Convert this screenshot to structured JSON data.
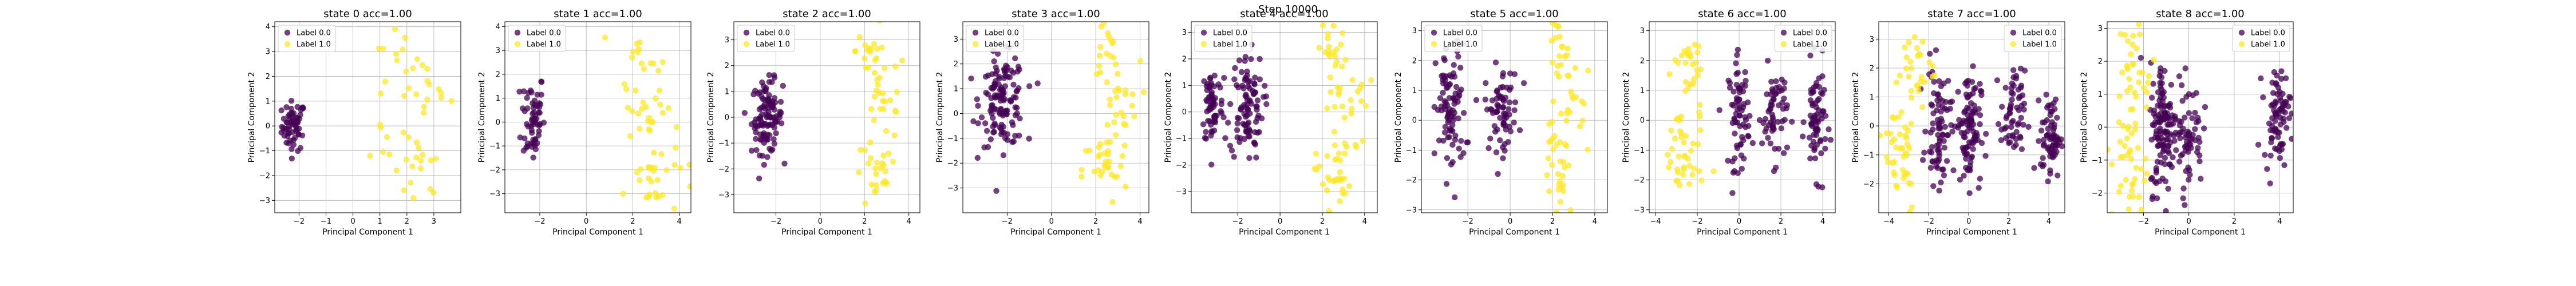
{
  "figure": {
    "suptitle": "Step 10000"
  },
  "colors": {
    "label0": "#440154",
    "label1": "#fde725",
    "grid": "#b0b0b0",
    "axis": "#000000"
  },
  "chart_data": [
    {
      "type": "scatter",
      "title": "state 0 acc=1.00",
      "xlabel": "Principal Component 1",
      "ylabel": "Principal Component 2",
      "xlim": [
        -2.9,
        4.0
      ],
      "ylim": [
        -3.5,
        4.2
      ],
      "xticks": [
        -2,
        -1,
        0,
        1,
        2,
        3
      ],
      "yticks": [
        -3,
        -2,
        -1,
        0,
        1,
        2,
        3,
        4
      ],
      "grid": true,
      "legend_loc": "upper-left",
      "series": [
        {
          "name": "Label 0.0",
          "clusters": [
            {
              "cx": -2.2,
              "cy": 0.0,
              "sx": 0.22,
              "sy": 0.5,
              "n": 60
            }
          ]
        },
        {
          "name": "Label 1.0",
          "clusters": [
            {
              "cx": 1.5,
              "cy": 2.4,
              "sx": 0.5,
              "sy": 0.9,
              "n": 15
            },
            {
              "cx": 2.8,
              "cy": 1.4,
              "sx": 0.4,
              "sy": 0.7,
              "n": 12
            },
            {
              "cx": 2.4,
              "cy": -2.0,
              "sx": 0.45,
              "sy": 0.8,
              "n": 18
            },
            {
              "cx": 1.2,
              "cy": -0.3,
              "sx": 0.3,
              "sy": 0.6,
              "n": 6
            }
          ]
        }
      ]
    },
    {
      "type": "scatter",
      "title": "state 1 acc=1.00",
      "xlabel": "Principal Component 1",
      "ylabel": "Principal Component 2",
      "xlim": [
        -3.5,
        4.5
      ],
      "ylim": [
        -3.8,
        4.2
      ],
      "xticks": [
        -2,
        0,
        2,
        4
      ],
      "yticks": [
        -3,
        -2,
        -1,
        0,
        1,
        2,
        3,
        4
      ],
      "grid": true,
      "legend_loc": "upper-left",
      "series": [
        {
          "name": "Label 0.0",
          "clusters": [
            {
              "cx": -2.3,
              "cy": 0.2,
              "sx": 0.25,
              "sy": 1.0,
              "n": 60
            }
          ]
        },
        {
          "name": "Label 1.0",
          "clusters": [
            {
              "cx": 2.2,
              "cy": 2.5,
              "sx": 0.4,
              "sy": 0.9,
              "n": 15
            },
            {
              "cx": 2.8,
              "cy": 0.2,
              "sx": 0.6,
              "sy": 1.0,
              "n": 25
            },
            {
              "cx": 2.8,
              "cy": -2.5,
              "sx": 0.6,
              "sy": 0.7,
              "n": 25
            }
          ]
        }
      ]
    },
    {
      "type": "scatter",
      "title": "state 2 acc=1.00",
      "xlabel": "Principal Component 1",
      "ylabel": "Principal Component 2",
      "xlim": [
        -3.9,
        4.5
      ],
      "ylim": [
        -3.7,
        3.7
      ],
      "xticks": [
        -2,
        0,
        2,
        4
      ],
      "yticks": [
        -3,
        -2,
        -1,
        0,
        1,
        2,
        3
      ],
      "grid": true,
      "legend_loc": "upper-left",
      "series": [
        {
          "name": "Label 0.0",
          "clusters": [
            {
              "cx": -2.4,
              "cy": 0.0,
              "sx": 0.35,
              "sy": 0.7,
              "n": 110
            }
          ]
        },
        {
          "name": "Label 1.0",
          "clusters": [
            {
              "cx": 2.2,
              "cy": 2.6,
              "sx": 0.3,
              "sy": 0.6,
              "n": 15
            },
            {
              "cx": 2.9,
              "cy": 0.8,
              "sx": 0.5,
              "sy": 0.9,
              "n": 25
            },
            {
              "cx": 2.5,
              "cy": -2.3,
              "sx": 0.5,
              "sy": 0.7,
              "n": 25
            }
          ]
        }
      ]
    },
    {
      "type": "scatter",
      "title": "state 3 acc=1.00",
      "xlabel": "Principal Component 1",
      "ylabel": "Principal Component 2",
      "xlim": [
        -4.0,
        4.4
      ],
      "ylim": [
        -4.0,
        3.7
      ],
      "xticks": [
        -2,
        0,
        2,
        4
      ],
      "yticks": [
        -3,
        -2,
        -1,
        0,
        1,
        2,
        3
      ],
      "grid": true,
      "legend_loc": "upper-left",
      "series": [
        {
          "name": "Label 0.0",
          "clusters": [
            {
              "cx": -2.2,
              "cy": 0.5,
              "sx": 0.5,
              "sy": 0.9,
              "n": 130
            }
          ]
        },
        {
          "name": "Label 1.0",
          "clusters": [
            {
              "cx": 2.4,
              "cy": 2.6,
              "sx": 0.3,
              "sy": 0.6,
              "n": 15
            },
            {
              "cx": 3.0,
              "cy": 0.5,
              "sx": 0.5,
              "sy": 0.8,
              "n": 25
            },
            {
              "cx": 2.4,
              "cy": -2.3,
              "sx": 0.5,
              "sy": 0.7,
              "n": 30
            }
          ]
        }
      ]
    },
    {
      "type": "scatter",
      "title": "state 4 acc=1.00",
      "xlabel": "Principal Component 1",
      "ylabel": "Principal Component 2",
      "xlim": [
        -4.2,
        4.6
      ],
      "ylim": [
        -3.8,
        3.4
      ],
      "xticks": [
        -2,
        0,
        2,
        4
      ],
      "yticks": [
        -3,
        -2,
        -1,
        0,
        1,
        2,
        3
      ],
      "grid": true,
      "legend_loc": "upper-left",
      "series": [
        {
          "name": "Label 0.0",
          "clusters": [
            {
              "cx": -3.2,
              "cy": 0.3,
              "sx": 0.25,
              "sy": 0.8,
              "n": 60
            },
            {
              "cx": -1.6,
              "cy": 0.2,
              "sx": 0.4,
              "sy": 1.0,
              "n": 100
            }
          ]
        },
        {
          "name": "Label 1.0",
          "clusters": [
            {
              "cx": 2.4,
              "cy": 2.2,
              "sx": 0.3,
              "sy": 0.7,
              "n": 20
            },
            {
              "cx": 3.2,
              "cy": 0.2,
              "sx": 0.5,
              "sy": 1.0,
              "n": 25
            },
            {
              "cx": 2.5,
              "cy": -2.4,
              "sx": 0.4,
              "sy": 0.6,
              "n": 30
            }
          ]
        }
      ]
    },
    {
      "type": "scatter",
      "title": "state 5 acc=1.00",
      "xlabel": "Principal Component 1",
      "ylabel": "Principal Component 2",
      "xlim": [
        -4.2,
        4.6
      ],
      "ylim": [
        -3.1,
        3.3
      ],
      "xticks": [
        -2,
        0,
        2,
        4
      ],
      "yticks": [
        -3,
        -2,
        -1,
        0,
        1,
        2,
        3
      ],
      "grid": true,
      "legend_loc": "upper-left",
      "series": [
        {
          "name": "Label 0.0",
          "clusters": [
            {
              "cx": -2.8,
              "cy": 0.3,
              "sx": 0.35,
              "sy": 1.1,
              "n": 90
            },
            {
              "cx": -0.4,
              "cy": 0.4,
              "sx": 0.4,
              "sy": 0.7,
              "n": 70
            }
          ]
        },
        {
          "name": "Label 1.0",
          "clusters": [
            {
              "cx": 2.2,
              "cy": 2.2,
              "sx": 0.3,
              "sy": 0.6,
              "n": 20
            },
            {
              "cx": 3.1,
              "cy": 0.4,
              "sx": 0.5,
              "sy": 0.9,
              "n": 20
            },
            {
              "cx": 2.4,
              "cy": -1.8,
              "sx": 0.4,
              "sy": 0.8,
              "n": 30
            }
          ]
        }
      ]
    },
    {
      "type": "scatter",
      "title": "state 6 acc=1.00",
      "xlabel": "Principal Component 1",
      "ylabel": "Principal Component 2",
      "xlim": [
        -4.3,
        4.6
      ],
      "ylim": [
        -3.1,
        3.3
      ],
      "xticks": [
        -4,
        -2,
        0,
        2,
        4
      ],
      "yticks": [
        -3,
        -2,
        -1,
        0,
        1,
        2,
        3
      ],
      "grid": true,
      "legend_loc": "upper-right",
      "series": [
        {
          "name": "Label 0.0",
          "clusters": [
            {
              "cx": 0.0,
              "cy": 0.2,
              "sx": 0.25,
              "sy": 0.9,
              "n": 70
            },
            {
              "cx": 1.7,
              "cy": 0.2,
              "sx": 0.3,
              "sy": 0.8,
              "n": 60
            },
            {
              "cx": 3.7,
              "cy": 0.0,
              "sx": 0.25,
              "sy": 0.9,
              "n": 70
            }
          ]
        },
        {
          "name": "Label 1.0",
          "clusters": [
            {
              "cx": -2.3,
              "cy": 1.5,
              "sx": 0.4,
              "sy": 1.0,
              "n": 30
            },
            {
              "cx": -2.7,
              "cy": -1.3,
              "sx": 0.5,
              "sy": 1.0,
              "n": 40
            }
          ]
        }
      ]
    },
    {
      "type": "scatter",
      "title": "state 7 acc=1.00",
      "xlabel": "Principal Component 1",
      "ylabel": "Principal Component 2",
      "xlim": [
        -4.5,
        4.8
      ],
      "ylim": [
        -3.0,
        3.6
      ],
      "xticks": [
        -4,
        -2,
        0,
        2,
        4
      ],
      "yticks": [
        -2,
        -1,
        0,
        1,
        2,
        3
      ],
      "grid": true,
      "legend_loc": "upper-right",
      "series": [
        {
          "name": "Label 0.0",
          "clusters": [
            {
              "cx": -1.5,
              "cy": 0.0,
              "sx": 0.3,
              "sy": 1.0,
              "n": 80
            },
            {
              "cx": 0.0,
              "cy": 0.0,
              "sx": 0.3,
              "sy": 1.0,
              "n": 100
            },
            {
              "cx": 2.2,
              "cy": 0.3,
              "sx": 0.3,
              "sy": 0.8,
              "n": 60
            },
            {
              "cx": 4.1,
              "cy": -0.4,
              "sx": 0.25,
              "sy": 0.7,
              "n": 70
            }
          ]
        },
        {
          "name": "Label 1.0",
          "clusters": [
            {
              "cx": -2.7,
              "cy": 2.0,
              "sx": 0.5,
              "sy": 0.8,
              "n": 30
            },
            {
              "cx": -3.4,
              "cy": -0.9,
              "sx": 0.4,
              "sy": 1.1,
              "n": 40
            }
          ]
        }
      ]
    },
    {
      "type": "scatter",
      "title": "state 8 acc=1.00",
      "xlabel": "Principal Component 1",
      "ylabel": "Principal Component 2",
      "xlim": [
        -3.6,
        4.6
      ],
      "ylim": [
        -2.6,
        3.2
      ],
      "xticks": [
        -2,
        0,
        2,
        4
      ],
      "yticks": [
        -2,
        -1,
        0,
        1,
        2,
        3
      ],
      "grid": true,
      "legend_loc": "upper-right",
      "series": [
        {
          "name": "Label 0.0",
          "clusters": [
            {
              "cx": -1.1,
              "cy": 0.0,
              "sx": 0.3,
              "sy": 1.0,
              "n": 130
            },
            {
              "cx": 0.0,
              "cy": -0.2,
              "sx": 0.3,
              "sy": 0.8,
              "n": 60
            },
            {
              "cx": 3.9,
              "cy": 0.4,
              "sx": 0.3,
              "sy": 0.7,
              "n": 80
            }
          ]
        },
        {
          "name": "Label 1.0",
          "clusters": [
            {
              "cx": -2.3,
              "cy": 1.8,
              "sx": 0.4,
              "sy": 0.8,
              "n": 30
            },
            {
              "cx": -2.6,
              "cy": -1.0,
              "sx": 0.4,
              "sy": 1.0,
              "n": 40
            }
          ]
        }
      ]
    }
  ]
}
